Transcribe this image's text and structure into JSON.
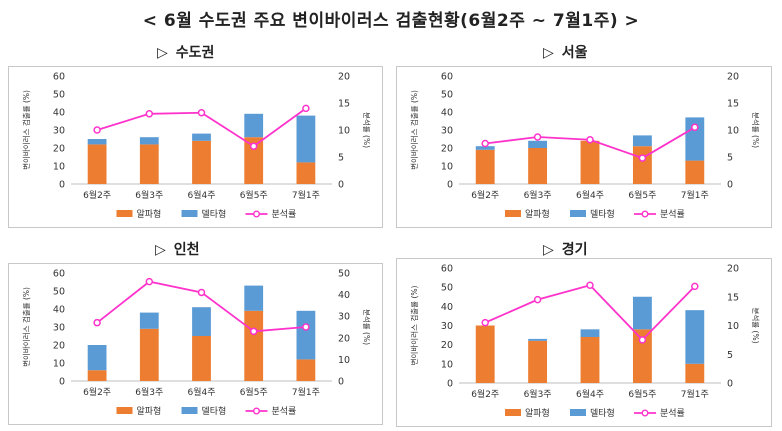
{
  "page_title": "< 6월 수도권 주요 변이바이러스 검출현황(6월2주 ~ 7월1주) >",
  "marker": "▷",
  "colors": {
    "alpha": "#ED7D31",
    "delta": "#5B9BD5",
    "rate": "#FF33CC"
  },
  "chart_data": [
    {
      "type": "bar",
      "title": "수도권",
      "categories": [
        "6월2주",
        "6월3주",
        "6월4주",
        "6월5주",
        "7월1주"
      ],
      "series": [
        {
          "name": "알파형",
          "values": [
            22,
            22,
            24,
            26,
            12
          ]
        },
        {
          "name": "델타형",
          "values": [
            3,
            4,
            4,
            13,
            26
          ]
        },
        {
          "name": "분석률",
          "values": [
            10,
            13,
            13.2,
            7,
            14
          ],
          "axis": "right"
        }
      ],
      "ylabel": "변이바이러스 검출률 (%)",
      "y2label": "분석률 (%)",
      "ylim": [
        0,
        60
      ],
      "yticks": [
        0,
        10,
        20,
        30,
        40,
        50,
        60
      ],
      "y2lim": [
        0,
        20
      ],
      "y2ticks": [
        0,
        5,
        10,
        15,
        20
      ],
      "legend": "bottom"
    },
    {
      "type": "bar",
      "title": "서울",
      "categories": [
        "6월2주",
        "6월3주",
        "6월4주",
        "6월5주",
        "7월1주"
      ],
      "series": [
        {
          "name": "알파형",
          "values": [
            19,
            20,
            24,
            21,
            13
          ]
        },
        {
          "name": "델타형",
          "values": [
            2,
            4,
            0,
            6,
            24
          ]
        },
        {
          "name": "분석률",
          "values": [
            7.5,
            8.7,
            8.2,
            4.8,
            10.5
          ],
          "axis": "right"
        }
      ],
      "ylabel": "변이바이러스 검출률 (%)",
      "y2label": "분석률 (%)",
      "ylim": [
        0,
        60
      ],
      "yticks": [
        0,
        10,
        20,
        30,
        40,
        50,
        60
      ],
      "y2lim": [
        0,
        20
      ],
      "y2ticks": [
        0,
        5,
        10,
        15,
        20
      ],
      "legend": "bottom"
    },
    {
      "type": "bar",
      "title": "인천",
      "categories": [
        "6월2주",
        "6월3주",
        "6월4주",
        "6월5주",
        "7월1주"
      ],
      "series": [
        {
          "name": "알파형",
          "values": [
            6,
            29,
            25,
            39,
            12
          ]
        },
        {
          "name": "델타형",
          "values": [
            14,
            9,
            16,
            14,
            27
          ]
        },
        {
          "name": "분석률",
          "values": [
            27,
            46,
            41,
            23,
            25
          ],
          "axis": "right"
        }
      ],
      "ylabel": "변이바이러스 검출률 (%)",
      "y2label": "분석률 (%)",
      "ylim": [
        0,
        60
      ],
      "yticks": [
        0,
        10,
        20,
        30,
        40,
        50,
        60
      ],
      "y2lim": [
        0,
        50
      ],
      "y2ticks": [
        0,
        10,
        20,
        30,
        40,
        50
      ],
      "legend": "bottom"
    },
    {
      "type": "bar",
      "title": "경기",
      "categories": [
        "6월2주",
        "6월3주",
        "6월4주",
        "6월5주",
        "7월1주"
      ],
      "series": [
        {
          "name": "알파형",
          "values": [
            30,
            22,
            24,
            28,
            10
          ]
        },
        {
          "name": "델타형",
          "values": [
            0,
            1,
            4,
            17,
            28
          ]
        },
        {
          "name": "분석률",
          "values": [
            10.5,
            14.5,
            17,
            7.5,
            16.8
          ],
          "axis": "right"
        }
      ],
      "ylabel": "변이바이러스 검출률 (%)",
      "y2label": "분석률 (%)",
      "ylim": [
        0,
        60
      ],
      "yticks": [
        0,
        10,
        20,
        30,
        40,
        50,
        60
      ],
      "y2lim": [
        0,
        20
      ],
      "y2ticks": [
        0,
        5,
        10,
        15,
        20
      ],
      "legend": "bottom"
    }
  ]
}
